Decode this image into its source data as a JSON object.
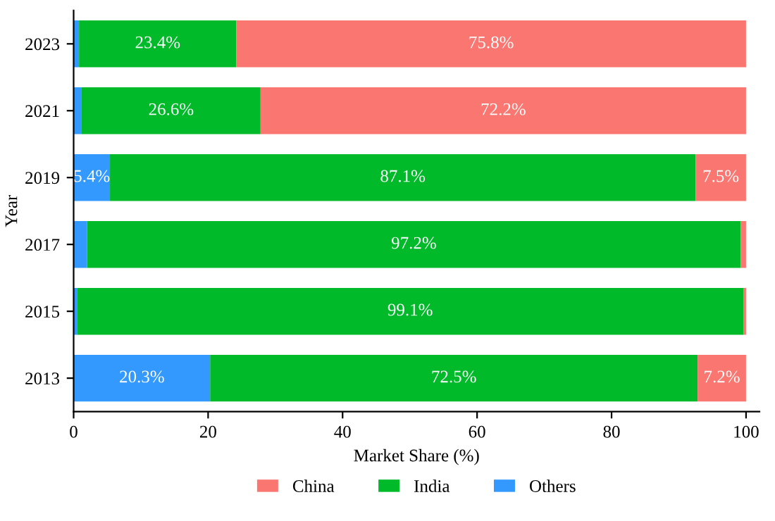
{
  "chart_data": {
    "type": "bar",
    "orientation": "horizontal",
    "stacked": true,
    "xlabel": "Market Share (%)",
    "ylabel": "Year",
    "categories": [
      "2023",
      "2021",
      "2019",
      "2017",
      "2015",
      "2013"
    ],
    "series": [
      {
        "name": "Others",
        "color": "#3399ff",
        "values": [
          0.8,
          1.2,
          5.4,
          2.0,
          0.5,
          20.3
        ],
        "value_labels": [
          null,
          null,
          "5.4%",
          null,
          null,
          "20.3%"
        ]
      },
      {
        "name": "India",
        "color": "#00ba2a",
        "values": [
          23.4,
          26.6,
          87.1,
          97.2,
          99.1,
          72.5
        ],
        "value_labels": [
          "23.4%",
          "26.6%",
          "87.1%",
          "97.2%",
          "99.1%",
          "72.5%"
        ]
      },
      {
        "name": "China",
        "color": "#fa7670",
        "values": [
          75.8,
          72.2,
          7.5,
          0.8,
          0.4,
          7.2
        ],
        "value_labels": [
          "75.8%",
          "72.2%",
          "7.5%",
          null,
          null,
          "7.2%"
        ]
      }
    ],
    "xlim": [
      0,
      102
    ],
    "xticks": [
      0,
      20,
      40,
      60,
      80,
      100
    ],
    "grid": false,
    "legend": "bottom"
  }
}
